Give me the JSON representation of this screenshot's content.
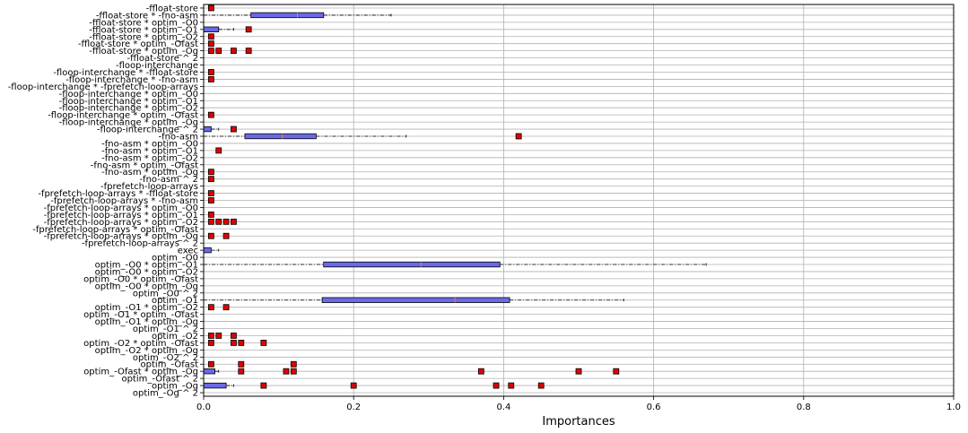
{
  "chart_data": {
    "type": "boxplot",
    "orientation": "horizontal",
    "xlabel": "Importances",
    "xlim": [
      0,
      1.0
    ],
    "xticks": [
      "0.0",
      "0.2",
      "0.4",
      "0.6",
      "0.8",
      "1.0"
    ],
    "grid": true,
    "colors": {
      "box_fill": "#6a6ae8",
      "box_edge": "#000000",
      "outlier": "#e00000",
      "median": "#d08a3a",
      "grid": "#b0b0b0"
    },
    "categories": [
      "-ffloat-store",
      "-ffloat-store * -fno-asm",
      "-ffloat-store * optim_-O0",
      "-ffloat-store * optim_-O1",
      "-ffloat-store * optim_-O2",
      "-ffloat-store * optim_-Ofast",
      "-ffloat-store * optim_-Og",
      "-ffloat-store ^ 2",
      "-floop-interchange",
      "-floop-interchange * -ffloat-store",
      "-floop-interchange * -fno-asm",
      "-floop-interchange * -fprefetch-loop-arrays",
      "-floop-interchange * optim_-O0",
      "-floop-interchange * optim_-O1",
      "-floop-interchange * optim_-O2",
      "-floop-interchange * optim_-Ofast",
      "-floop-interchange * optim_-Og",
      "-floop-interchange ^ 2",
      "-fno-asm",
      "-fno-asm * optim_-O0",
      "-fno-asm * optim_-O1",
      "-fno-asm * optim_-O2",
      "-fno-asm * optim_-Ofast",
      "-fno-asm * optim_-Og",
      "-fno-asm ^ 2",
      "-fprefetch-loop-arrays",
      "-fprefetch-loop-arrays * -ffloat-store",
      "-fprefetch-loop-arrays * -fno-asm",
      "-fprefetch-loop-arrays * optim_-O0",
      "-fprefetch-loop-arrays * optim_-O1",
      "-fprefetch-loop-arrays * optim_-O2",
      "-fprefetch-loop-arrays * optim_-Ofast",
      "-fprefetch-loop-arrays * optim_-Og",
      "-fprefetch-loop-arrays ^ 2",
      "exec",
      "optim_-O0",
      "optim_-O0 * optim_-O1",
      "optim_-O0 * optim_-O2",
      "optim_-O0 * optim_-Ofast",
      "optim_-O0 * optim_-Og",
      "optim_-O0 ^ 2",
      "optim_-O1",
      "optim_-O1 * optim_-O2",
      "optim_-O1 * optim_-Ofast",
      "optim_-O1 * optim_-Og",
      "optim_-O1 ^ 2",
      "optim_-O2",
      "optim_-O2 * optim_-Ofast",
      "optim_-O2 * optim_-Og",
      "optim_-O2 ^ 2",
      "optim_-Ofast",
      "optim_-Ofast * optim_-Og",
      "optim_-Ofast ^ 2",
      "optim_-Og",
      "optim_-Og ^ 2"
    ],
    "boxes": [
      {
        "q1": 0,
        "median": 0,
        "q3": 0,
        "whislo": 0,
        "whishi": 0,
        "outliers": [
          0.01
        ]
      },
      {
        "q1": 0.063,
        "median": 0.125,
        "q3": 0.16,
        "whislo": 0.0,
        "whishi": 0.25,
        "outliers": []
      },
      {
        "q1": 0,
        "median": 0,
        "q3": 0,
        "whislo": 0,
        "whishi": 0,
        "outliers": []
      },
      {
        "q1": 0,
        "median": 0,
        "q3": 0.02,
        "whislo": 0,
        "whishi": 0.04,
        "outliers": [
          0.06
        ]
      },
      {
        "q1": 0,
        "median": 0,
        "q3": 0,
        "whislo": 0,
        "whishi": 0,
        "outliers": [
          0.01
        ]
      },
      {
        "q1": 0,
        "median": 0,
        "q3": 0,
        "whislo": 0,
        "whishi": 0,
        "outliers": [
          0.01
        ]
      },
      {
        "q1": 0,
        "median": 0,
        "q3": 0,
        "whislo": 0,
        "whishi": 0,
        "outliers": [
          0.01,
          0.02,
          0.04,
          0.06
        ]
      },
      {
        "q1": 0,
        "median": 0,
        "q3": 0,
        "whislo": 0,
        "whishi": 0,
        "outliers": []
      },
      {
        "q1": 0,
        "median": 0,
        "q3": 0,
        "whislo": 0,
        "whishi": 0,
        "outliers": []
      },
      {
        "q1": 0,
        "median": 0,
        "q3": 0,
        "whislo": 0,
        "whishi": 0,
        "outliers": [
          0.01
        ]
      },
      {
        "q1": 0,
        "median": 0,
        "q3": 0,
        "whislo": 0,
        "whishi": 0,
        "outliers": [
          0.01
        ]
      },
      {
        "q1": 0,
        "median": 0,
        "q3": 0,
        "whislo": 0,
        "whishi": 0,
        "outliers": []
      },
      {
        "q1": 0,
        "median": 0,
        "q3": 0,
        "whislo": 0,
        "whishi": 0,
        "outliers": []
      },
      {
        "q1": 0,
        "median": 0,
        "q3": 0,
        "whislo": 0,
        "whishi": 0,
        "outliers": []
      },
      {
        "q1": 0,
        "median": 0,
        "q3": 0,
        "whislo": 0,
        "whishi": 0,
        "outliers": []
      },
      {
        "q1": 0,
        "median": 0,
        "q3": 0,
        "whislo": 0,
        "whishi": 0,
        "outliers": [
          0.01
        ]
      },
      {
        "q1": 0,
        "median": 0,
        "q3": 0,
        "whislo": 0,
        "whishi": 0,
        "outliers": []
      },
      {
        "q1": 0,
        "median": 0,
        "q3": 0.01,
        "whislo": 0,
        "whishi": 0.02,
        "outliers": [
          0.04
        ]
      },
      {
        "q1": 0.055,
        "median": 0.105,
        "q3": 0.15,
        "whislo": 0.0,
        "whishi": 0.27,
        "outliers": [
          0.42
        ]
      },
      {
        "q1": 0,
        "median": 0,
        "q3": 0,
        "whislo": 0,
        "whishi": 0,
        "outliers": []
      },
      {
        "q1": 0,
        "median": 0,
        "q3": 0,
        "whislo": 0,
        "whishi": 0,
        "outliers": [
          0.02
        ]
      },
      {
        "q1": 0,
        "median": 0,
        "q3": 0,
        "whislo": 0,
        "whishi": 0,
        "outliers": []
      },
      {
        "q1": 0,
        "median": 0,
        "q3": 0,
        "whislo": 0,
        "whishi": 0,
        "outliers": []
      },
      {
        "q1": 0,
        "median": 0,
        "q3": 0,
        "whislo": 0,
        "whishi": 0,
        "outliers": [
          0.01
        ]
      },
      {
        "q1": 0,
        "median": 0,
        "q3": 0,
        "whislo": 0,
        "whishi": 0,
        "outliers": [
          0.01
        ]
      },
      {
        "q1": 0,
        "median": 0,
        "q3": 0,
        "whislo": 0,
        "whishi": 0,
        "outliers": []
      },
      {
        "q1": 0,
        "median": 0,
        "q3": 0,
        "whislo": 0,
        "whishi": 0,
        "outliers": [
          0.01
        ]
      },
      {
        "q1": 0,
        "median": 0,
        "q3": 0,
        "whislo": 0,
        "whishi": 0,
        "outliers": [
          0.01
        ]
      },
      {
        "q1": 0,
        "median": 0,
        "q3": 0,
        "whislo": 0,
        "whishi": 0,
        "outliers": []
      },
      {
        "q1": 0,
        "median": 0,
        "q3": 0,
        "whislo": 0,
        "whishi": 0,
        "outliers": [
          0.01
        ]
      },
      {
        "q1": 0,
        "median": 0,
        "q3": 0,
        "whislo": 0,
        "whishi": 0,
        "outliers": [
          0.01,
          0.02,
          0.03,
          0.04
        ]
      },
      {
        "q1": 0,
        "median": 0,
        "q3": 0,
        "whislo": 0,
        "whishi": 0,
        "outliers": []
      },
      {
        "q1": 0,
        "median": 0,
        "q3": 0,
        "whislo": 0,
        "whishi": 0,
        "outliers": [
          0.01,
          0.03
        ]
      },
      {
        "q1": 0,
        "median": 0,
        "q3": 0,
        "whislo": 0,
        "whishi": 0,
        "outliers": []
      },
      {
        "q1": 0,
        "median": 0,
        "q3": 0.01,
        "whislo": 0,
        "whishi": 0.02,
        "outliers": []
      },
      {
        "q1": 0,
        "median": 0,
        "q3": 0,
        "whislo": 0,
        "whishi": 0,
        "outliers": []
      },
      {
        "q1": 0.16,
        "median": 0.29,
        "q3": 0.395,
        "whislo": 0.0,
        "whishi": 0.67,
        "outliers": []
      },
      {
        "q1": 0,
        "median": 0,
        "q3": 0,
        "whislo": 0,
        "whishi": 0,
        "outliers": []
      },
      {
        "q1": 0,
        "median": 0,
        "q3": 0,
        "whislo": 0,
        "whishi": 0,
        "outliers": []
      },
      {
        "q1": 0,
        "median": 0,
        "q3": 0,
        "whislo": 0,
        "whishi": 0,
        "outliers": []
      },
      {
        "q1": 0,
        "median": 0,
        "q3": 0,
        "whislo": 0,
        "whishi": 0,
        "outliers": []
      },
      {
        "q1": 0.158,
        "median": 0.335,
        "q3": 0.408,
        "whislo": 0.0,
        "whishi": 0.56,
        "outliers": []
      },
      {
        "q1": 0,
        "median": 0,
        "q3": 0,
        "whislo": 0,
        "whishi": 0,
        "outliers": [
          0.01,
          0.03
        ]
      },
      {
        "q1": 0,
        "median": 0,
        "q3": 0,
        "whislo": 0,
        "whishi": 0,
        "outliers": []
      },
      {
        "q1": 0,
        "median": 0,
        "q3": 0,
        "whislo": 0,
        "whishi": 0,
        "outliers": []
      },
      {
        "q1": 0,
        "median": 0,
        "q3": 0,
        "whislo": 0,
        "whishi": 0,
        "outliers": []
      },
      {
        "q1": 0,
        "median": 0,
        "q3": 0,
        "whislo": 0,
        "whishi": 0,
        "outliers": [
          0.01,
          0.02,
          0.04
        ]
      },
      {
        "q1": 0,
        "median": 0,
        "q3": 0,
        "whislo": 0,
        "whishi": 0,
        "outliers": [
          0.01,
          0.04,
          0.05,
          0.08
        ]
      },
      {
        "q1": 0,
        "median": 0,
        "q3": 0,
        "whislo": 0,
        "whishi": 0,
        "outliers": []
      },
      {
        "q1": 0,
        "median": 0,
        "q3": 0,
        "whislo": 0,
        "whishi": 0,
        "outliers": []
      },
      {
        "q1": 0,
        "median": 0,
        "q3": 0,
        "whislo": 0,
        "whishi": 0,
        "outliers": [
          0.01,
          0.05,
          0.12
        ]
      },
      {
        "q1": 0,
        "median": 0,
        "q3": 0.015,
        "whislo": 0,
        "whishi": 0.02,
        "outliers": [
          0.05,
          0.11,
          0.12,
          0.37,
          0.5,
          0.55
        ]
      },
      {
        "q1": 0,
        "median": 0,
        "q3": 0,
        "whislo": 0,
        "whishi": 0,
        "outliers": []
      },
      {
        "q1": 0,
        "median": 0,
        "q3": 0.03,
        "whislo": 0,
        "whishi": 0.04,
        "outliers": [
          0.08,
          0.2,
          0.39,
          0.41,
          0.45
        ]
      },
      {
        "q1": 0,
        "median": 0,
        "q3": 0,
        "whislo": 0,
        "whishi": 0,
        "outliers": []
      }
    ]
  }
}
